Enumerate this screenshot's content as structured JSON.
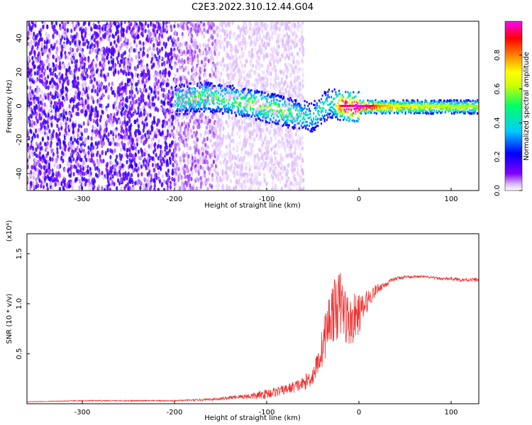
{
  "figure": {
    "title": "C2E3.2022.310.12.44.G04"
  },
  "chart_data": [
    {
      "type": "heatmap",
      "title": "C2E3.2022.310.12.44.G04",
      "xlabel": "Height of straight line (km)",
      "ylabel": "Frequency (Hz)",
      "xlim": [
        -360,
        130
      ],
      "ylim": [
        -50,
        50
      ],
      "xticks": [
        -300,
        -200,
        -100,
        0,
        100
      ],
      "yticks": [
        -40,
        -20,
        0,
        20,
        40
      ],
      "colorbar": {
        "label": "Normalized spectral amplitude",
        "range": [
          0,
          1
        ],
        "ticks": [
          0.0,
          0.2,
          0.4,
          0.6,
          0.8
        ],
        "colormap": [
          "#ffffff",
          "#d9b3ff",
          "#8000ff",
          "#0000ff",
          "#00ccff",
          "#00ff66",
          "#ccff00",
          "#ffff00",
          "#ff8000",
          "#ff0000",
          "#ff00ff"
        ]
      },
      "regions": [
        {
          "x_range": [
            -360,
            -200
          ],
          "y_range": [
            -50,
            50
          ],
          "amplitude": 0.12
        },
        {
          "x_range": [
            -200,
            -155
          ],
          "y_range": [
            -50,
            50
          ],
          "amplitude": 0.05
        },
        {
          "x_range": [
            -155,
            -60
          ],
          "y_range": [
            -50,
            50
          ],
          "amplitude": 0.02
        }
      ],
      "ridge": {
        "x": [
          -200,
          -185,
          -170,
          -150,
          -130,
          -110,
          -95,
          -80,
          -65,
          -50,
          -40,
          -30,
          -20,
          -10,
          0,
          10,
          20,
          40,
          60,
          80,
          100,
          130
        ],
        "y": [
          4,
          5,
          6,
          5,
          3,
          1,
          -1,
          -3,
          -5,
          -6,
          0,
          2,
          1,
          0,
          0,
          0,
          0,
          0,
          0,
          0,
          0,
          0
        ],
        "amplitude": [
          0.3,
          0.35,
          0.4,
          0.35,
          0.4,
          0.45,
          0.45,
          0.4,
          0.3,
          0.25,
          0.3,
          0.25,
          0.8,
          0.85,
          0.9,
          0.85,
          0.7,
          0.6,
          0.55,
          0.55,
          0.5,
          0.5
        ]
      }
    },
    {
      "type": "line",
      "title": "",
      "xlabel": "Height of straight line (km)",
      "ylabel": "SNR (10 * v/v)",
      "y_scale_label": "(x10⁴)",
      "xlim": [
        -360,
        130
      ],
      "ylim": [
        0,
        1.7
      ],
      "xticks": [
        -300,
        -200,
        -100,
        0,
        100
      ],
      "yticks": [
        0.5,
        1.0,
        1.5
      ],
      "yticklabels": [
        "0.5",
        "1.0",
        "1.5"
      ],
      "color": "#ee3333",
      "series": [
        {
          "x": [
            -360,
            -300,
            -250,
            -200,
            -170,
            -150,
            -130,
            -110,
            -100,
            -90,
            -80,
            -70,
            -60,
            -50,
            -45,
            -40,
            -35,
            -30,
            -25,
            -20,
            -15,
            -10,
            -5,
            0,
            5,
            10,
            20,
            30,
            40,
            50,
            60,
            70,
            80,
            90,
            100,
            110,
            120,
            130
          ],
          "values": [
            0.02,
            0.03,
            0.03,
            0.03,
            0.04,
            0.05,
            0.07,
            0.08,
            0.1,
            0.12,
            0.14,
            0.17,
            0.2,
            0.28,
            0.4,
            0.55,
            0.75,
            0.9,
            0.95,
            1.0,
            0.9,
            0.8,
            0.85,
            0.9,
            0.95,
            1.05,
            1.15,
            1.2,
            1.25,
            1.27,
            1.27,
            1.27,
            1.26,
            1.25,
            1.25,
            1.24,
            1.24,
            1.24
          ],
          "noise": [
            0.002,
            0.005,
            0.005,
            0.006,
            0.01,
            0.015,
            0.02,
            0.04,
            0.05,
            0.05,
            0.05,
            0.06,
            0.07,
            0.1,
            0.12,
            0.2,
            0.25,
            0.3,
            0.32,
            0.35,
            0.3,
            0.25,
            0.25,
            0.2,
            0.15,
            0.1,
            0.05,
            0.03,
            0.02,
            0.015,
            0.012,
            0.012,
            0.012,
            0.012,
            0.015,
            0.018,
            0.02,
            0.02
          ]
        }
      ]
    }
  ]
}
